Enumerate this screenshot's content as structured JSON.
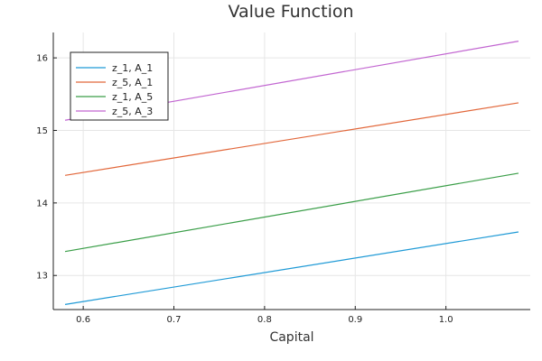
{
  "chart_data": {
    "type": "line",
    "title": "Value Function",
    "xlabel": "Capital",
    "ylabel": "",
    "xlim": [
      0.567,
      1.093
    ],
    "ylim": [
      12.53,
      16.35
    ],
    "xticks": [
      0.6,
      0.7,
      0.8,
      0.9,
      1.0
    ],
    "xtick_labels": [
      "0.6",
      "0.7",
      "0.8",
      "0.9",
      "1.0"
    ],
    "yticks": [
      13,
      14,
      15,
      16
    ],
    "ytick_labels": [
      "13",
      "14",
      "15",
      "16"
    ],
    "grid": true,
    "legend_position": "top-left",
    "series": [
      {
        "name": "z_1, A_1",
        "color": "#1f9ad6",
        "x": [
          0.58,
          1.08
        ],
        "y": [
          12.6,
          13.6
        ]
      },
      {
        "name": "z_5, A_1",
        "color": "#e2673a",
        "x": [
          0.58,
          1.08
        ],
        "y": [
          14.38,
          15.38
        ]
      },
      {
        "name": "z_1, A_5",
        "color": "#3a9e48",
        "x": [
          0.58,
          1.08
        ],
        "y": [
          13.33,
          14.41
        ]
      },
      {
        "name": "z_5, A_3",
        "color": "#c266d1",
        "x": [
          0.58,
          1.08
        ],
        "y": [
          15.14,
          16.23
        ]
      }
    ]
  }
}
